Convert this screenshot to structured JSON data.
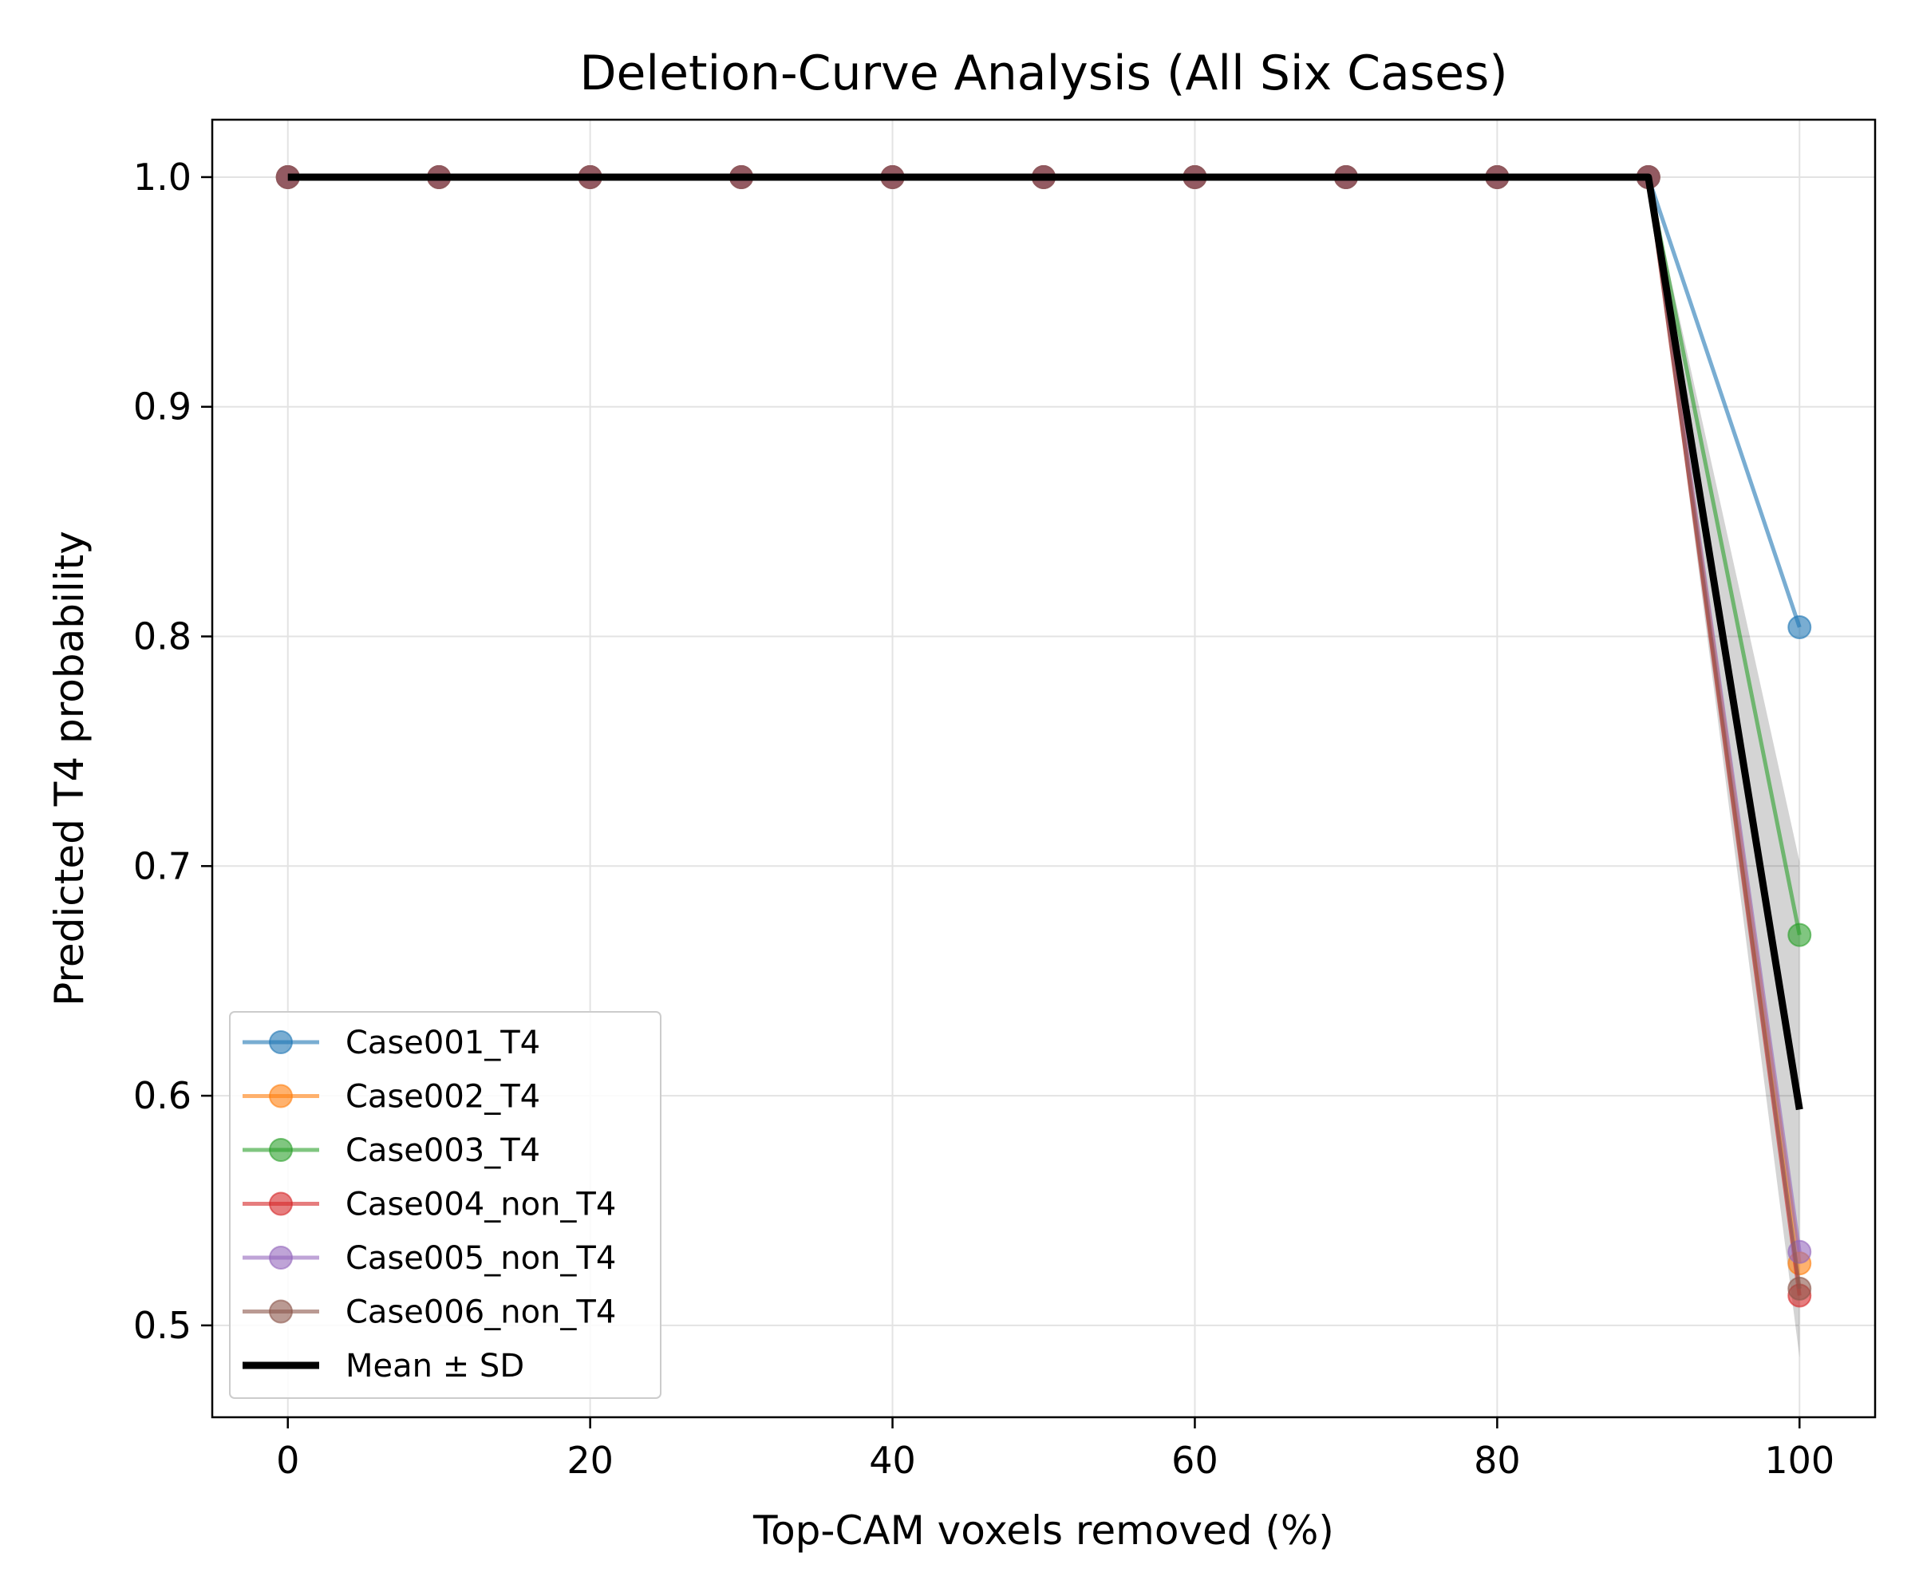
{
  "chart_data": {
    "type": "line",
    "title": "Deletion-Curve Analysis (All Six Cases)",
    "xlabel": "Top-CAM voxels removed (%)",
    "ylabel": "Predicted T4 probability",
    "xlim": [
      -5,
      105
    ],
    "ylim": [
      0.46,
      1.025
    ],
    "x_ticks": [
      0,
      20,
      40,
      60,
      80,
      100
    ],
    "y_ticks": [
      0.5,
      0.6,
      0.7,
      0.8,
      0.9,
      1.0
    ],
    "x_tick_labels": [
      "0",
      "20",
      "40",
      "60",
      "80",
      "100"
    ],
    "y_tick_labels": [
      "0.5",
      "0.6",
      "0.7",
      "0.8",
      "0.9",
      "1.0"
    ],
    "grid": true,
    "legend_position": "lower-left",
    "x": [
      0,
      10,
      20,
      30,
      40,
      50,
      60,
      70,
      80,
      90,
      100
    ],
    "series": [
      {
        "name": "Case001_T4",
        "color": "#1f77b4",
        "values": [
          1,
          1,
          1,
          1,
          1,
          1,
          1,
          1,
          1,
          1,
          0.804
        ]
      },
      {
        "name": "Case002_T4",
        "color": "#ff7f0e",
        "values": [
          1,
          1,
          1,
          1,
          1,
          1,
          1,
          1,
          1,
          1,
          0.527
        ]
      },
      {
        "name": "Case003_T4",
        "color": "#2ca02c",
        "values": [
          1,
          1,
          1,
          1,
          1,
          1,
          1,
          1,
          1,
          1,
          0.67
        ]
      },
      {
        "name": "Case004_non_T4",
        "color": "#d62728",
        "values": [
          1,
          1,
          1,
          1,
          1,
          1,
          1,
          1,
          1,
          1,
          0.513
        ]
      },
      {
        "name": "Case005_non_T4",
        "color": "#9467bd",
        "values": [
          1,
          1,
          1,
          1,
          1,
          1,
          1,
          1,
          1,
          1,
          0.532
        ]
      },
      {
        "name": "Case006_non_T4",
        "color": "#8c564b",
        "values": [
          1,
          1,
          1,
          1,
          1,
          1,
          1,
          1,
          1,
          1,
          0.516
        ]
      }
    ],
    "mean": {
      "name": "Mean ± SD",
      "color": "#000000",
      "values": [
        1,
        1,
        1,
        1,
        1,
        1,
        1,
        1,
        1,
        1,
        0.594
      ]
    },
    "sd": [
      0,
      0,
      0,
      0,
      0,
      0,
      0,
      0,
      0,
      0,
      0.108
    ]
  }
}
